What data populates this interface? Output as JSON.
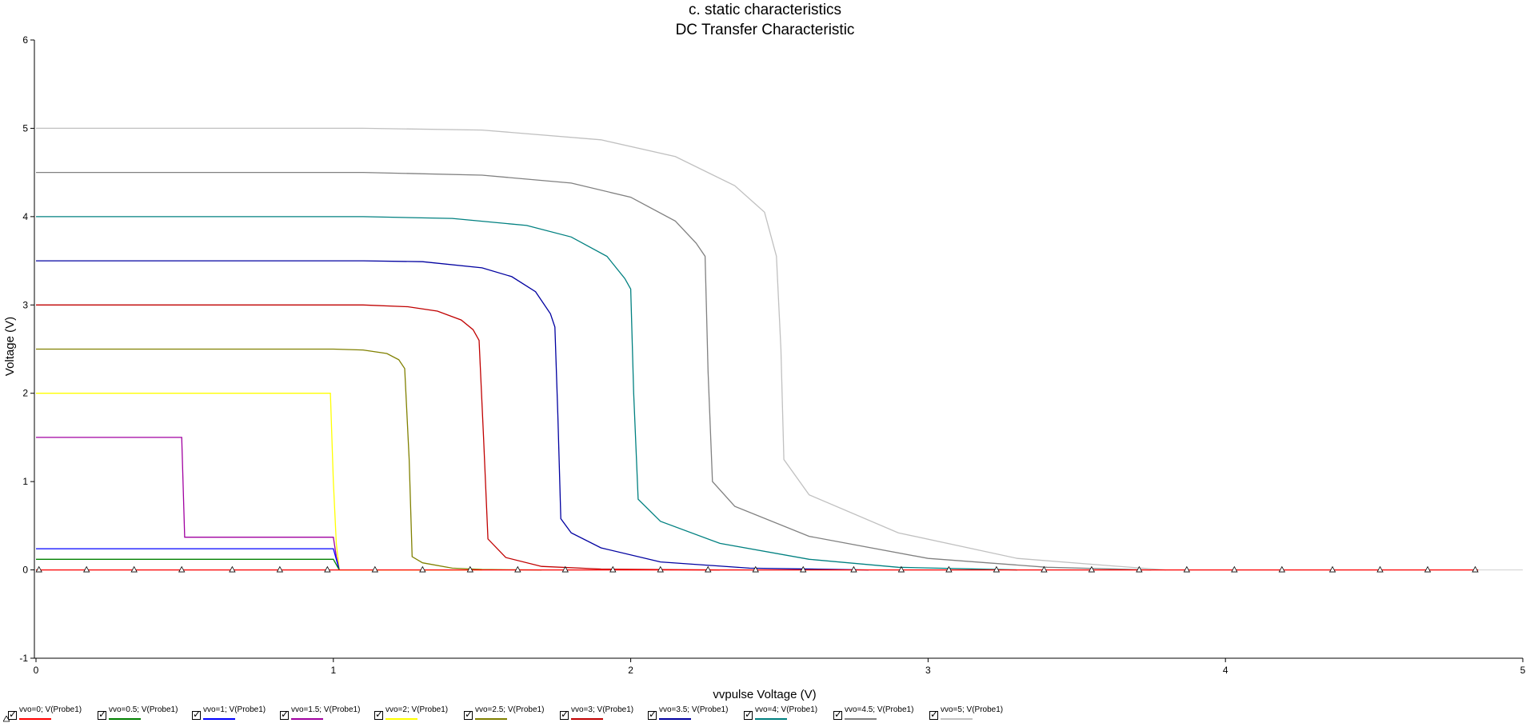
{
  "chart_data": {
    "type": "line",
    "title": "c. static characteristics",
    "subtitle": "DC Transfer Characteristic",
    "xlabel": "vvpulse Voltage (V)",
    "ylabel": "Voltage (V)",
    "xlim": [
      0,
      5
    ],
    "ylim": [
      -1,
      6
    ],
    "xticks": [
      "0",
      "1",
      "2",
      "3",
      "4",
      "5"
    ],
    "yticks": [
      "-1",
      "0",
      "1",
      "2",
      "3",
      "4",
      "5",
      "6"
    ],
    "grid": false,
    "legend_position": "bottom",
    "series": [
      {
        "name": "vvo=0; V(Probe1)",
        "color": "#ff0000",
        "x": [
          0,
          4.85
        ],
        "y": [
          0,
          0
        ]
      },
      {
        "name": "vvo=0.5; V(Probe1)",
        "color": "#008000",
        "x": [
          0,
          1.0,
          1.01,
          1.02
        ],
        "y": [
          0.12,
          0.12,
          0.06,
          0
        ]
      },
      {
        "name": "vvo=1; V(Probe1)",
        "color": "#0000ff",
        "x": [
          0,
          1.0,
          1.01,
          1.02
        ],
        "y": [
          0.24,
          0.24,
          0.12,
          0
        ]
      },
      {
        "name": "vvo=1.5; V(Probe1)",
        "color": "#a000a0",
        "x": [
          0,
          0.49,
          0.5,
          1.0,
          1.01,
          1.02
        ],
        "y": [
          1.5,
          1.5,
          0.37,
          0.37,
          0.15,
          0
        ]
      },
      {
        "name": "vvo=2; V(Probe1)",
        "color": "#ffff00",
        "x": [
          0,
          0.99,
          1.0,
          1.01,
          1.02,
          1.5
        ],
        "y": [
          2.0,
          2.0,
          1.0,
          0.3,
          0,
          0
        ]
      },
      {
        "name": "vvo=2.5; V(Probe1)",
        "color": "#808000",
        "x": [
          0,
          1.0,
          1.1,
          1.18,
          1.22,
          1.24,
          1.255,
          1.265,
          1.3,
          1.4,
          1.5,
          1.6,
          1.7
        ],
        "y": [
          2.5,
          2.5,
          2.49,
          2.45,
          2.38,
          2.28,
          1.25,
          0.15,
          0.08,
          0.02,
          0.005,
          0.002,
          0
        ]
      },
      {
        "name": "vvo=3; V(Probe1)",
        "color": "#c00000",
        "x": [
          0,
          1.1,
          1.25,
          1.35,
          1.43,
          1.47,
          1.49,
          1.505,
          1.52,
          1.58,
          1.7,
          1.9,
          2.1,
          2.3
        ],
        "y": [
          3.0,
          3.0,
          2.98,
          2.93,
          2.83,
          2.72,
          2.6,
          1.5,
          0.35,
          0.14,
          0.04,
          0.01,
          0.003,
          0
        ]
      },
      {
        "name": "vvo=3.5; V(Probe1)",
        "color": "#0000a0",
        "x": [
          0,
          1.1,
          1.3,
          1.5,
          1.6,
          1.68,
          1.73,
          1.745,
          1.755,
          1.765,
          1.8,
          1.9,
          2.1,
          2.4,
          2.8
        ],
        "y": [
          3.5,
          3.5,
          3.49,
          3.42,
          3.32,
          3.15,
          2.9,
          2.75,
          1.75,
          0.58,
          0.42,
          0.25,
          0.09,
          0.02,
          0
        ]
      },
      {
        "name": "vvo=4; V(Probe1)",
        "color": "#008080",
        "x": [
          0,
          1.1,
          1.4,
          1.65,
          1.8,
          1.92,
          1.98,
          2.0,
          2.01,
          2.025,
          2.1,
          2.3,
          2.6,
          2.9,
          3.3
        ],
        "y": [
          4.0,
          4.0,
          3.98,
          3.9,
          3.77,
          3.55,
          3.3,
          3.18,
          2.0,
          0.8,
          0.55,
          0.3,
          0.12,
          0.03,
          0
        ]
      },
      {
        "name": "vvo=4.5; V(Probe1)",
        "color": "#808080",
        "x": [
          0,
          1.1,
          1.5,
          1.8,
          2.0,
          2.15,
          2.22,
          2.25,
          2.26,
          2.275,
          2.35,
          2.6,
          3.0,
          3.4,
          3.75
        ],
        "y": [
          4.5,
          4.5,
          4.47,
          4.38,
          4.22,
          3.95,
          3.7,
          3.55,
          2.25,
          1.0,
          0.72,
          0.38,
          0.13,
          0.03,
          0
        ]
      },
      {
        "name": "vvo=5; V(Probe1)",
        "color": "#c0c0c0",
        "x": [
          0,
          1.1,
          1.5,
          1.9,
          2.15,
          2.35,
          2.45,
          2.49,
          2.505,
          2.515,
          2.6,
          2.9,
          3.3,
          3.6,
          3.8
        ],
        "y": [
          5.0,
          5.0,
          4.98,
          4.87,
          4.68,
          4.35,
          4.05,
          3.55,
          2.5,
          1.25,
          0.85,
          0.42,
          0.13,
          0.05,
          0
        ]
      }
    ],
    "markers_series_index": 0,
    "markers_x": [
      0.01,
      0.17,
      0.33,
      0.49,
      0.66,
      0.82,
      0.98,
      1.14,
      1.3,
      1.46,
      1.62,
      1.78,
      1.94,
      2.1,
      2.26,
      2.42,
      2.58,
      2.75,
      2.91,
      3.07,
      3.23,
      3.39,
      3.55,
      3.71,
      3.87,
      4.03,
      4.19,
      4.36,
      4.52,
      4.68,
      4.84
    ]
  }
}
